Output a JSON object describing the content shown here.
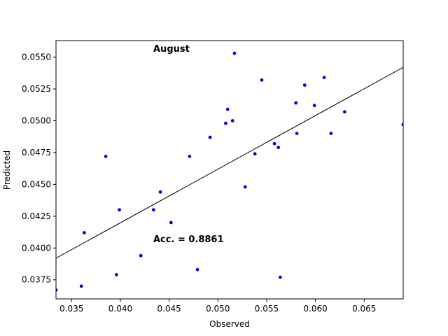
{
  "chart_data": {
    "type": "scatter",
    "xlabel": "Observed",
    "ylabel": "Predicted",
    "xlim": [
      0.0334,
      0.069
    ],
    "ylim": [
      0.036,
      0.0563
    ],
    "xticks": [
      "0.035",
      "0.040",
      "0.045",
      "0.050",
      "0.055",
      "0.060",
      "0.065"
    ],
    "xtick_values": [
      0.035,
      0.04,
      0.045,
      0.05,
      0.055,
      0.06,
      0.065
    ],
    "yticks": [
      "0.0375",
      "0.0400",
      "0.0425",
      "0.0450",
      "0.0475",
      "0.0500",
      "0.0525",
      "0.0550"
    ],
    "ytick_values": [
      0.0375,
      0.04,
      0.0425,
      0.045,
      0.0475,
      0.05,
      0.0525,
      0.055
    ],
    "point_color": "#0000dd",
    "line_color": "#000000",
    "grid": false,
    "annotations": {
      "title_text": "August",
      "accuracy_text": "Acc. = 0.8861"
    },
    "fit_line": {
      "x": [
        0.0334,
        0.069
      ],
      "y": [
        0.0392,
        0.0542
      ]
    },
    "points": [
      {
        "x": 0.0334,
        "y": 0.0367
      },
      {
        "x": 0.036,
        "y": 0.037
      },
      {
        "x": 0.0363,
        "y": 0.0412
      },
      {
        "x": 0.0385,
        "y": 0.0472
      },
      {
        "x": 0.0396,
        "y": 0.0379
      },
      {
        "x": 0.0399,
        "y": 0.043
      },
      {
        "x": 0.0421,
        "y": 0.0394
      },
      {
        "x": 0.0434,
        "y": 0.043
      },
      {
        "x": 0.0441,
        "y": 0.0444
      },
      {
        "x": 0.0452,
        "y": 0.042
      },
      {
        "x": 0.0471,
        "y": 0.0472
      },
      {
        "x": 0.0479,
        "y": 0.0383
      },
      {
        "x": 0.0492,
        "y": 0.0487
      },
      {
        "x": 0.0508,
        "y": 0.0498
      },
      {
        "x": 0.051,
        "y": 0.0509
      },
      {
        "x": 0.0515,
        "y": 0.05
      },
      {
        "x": 0.0517,
        "y": 0.0553
      },
      {
        "x": 0.0528,
        "y": 0.0448
      },
      {
        "x": 0.0538,
        "y": 0.0474
      },
      {
        "x": 0.0545,
        "y": 0.0532
      },
      {
        "x": 0.0558,
        "y": 0.0482
      },
      {
        "x": 0.0562,
        "y": 0.0479
      },
      {
        "x": 0.0564,
        "y": 0.0377
      },
      {
        "x": 0.058,
        "y": 0.0514
      },
      {
        "x": 0.0581,
        "y": 0.049
      },
      {
        "x": 0.0589,
        "y": 0.0528
      },
      {
        "x": 0.0599,
        "y": 0.0512
      },
      {
        "x": 0.0609,
        "y": 0.0534
      },
      {
        "x": 0.0616,
        "y": 0.049
      },
      {
        "x": 0.063,
        "y": 0.0507
      },
      {
        "x": 0.069,
        "y": 0.0497
      }
    ]
  }
}
